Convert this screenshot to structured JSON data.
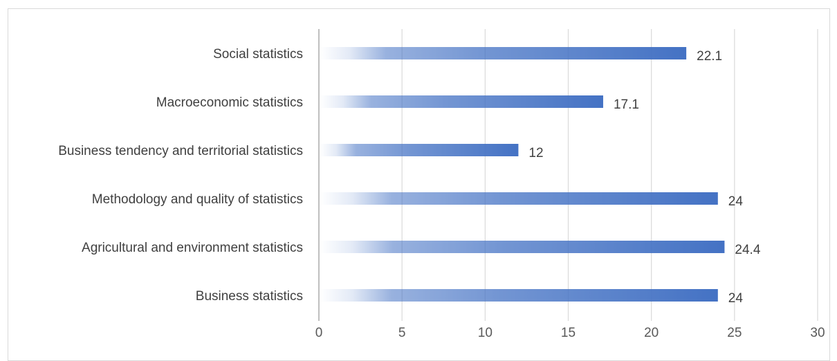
{
  "chart_data": {
    "type": "bar",
    "orientation": "horizontal",
    "categories": [
      "Social statistics",
      "Macroeconomic statistics",
      "Business tendency and territorial statistics",
      "Methodology and quality of statistics",
      "Agricultural and environment statistics",
      "Business statistics"
    ],
    "values": [
      22.1,
      17.1,
      12,
      24,
      24.4,
      24
    ],
    "value_labels": [
      "22.1",
      "17.1",
      "12",
      "24",
      "24.4",
      "24"
    ],
    "xlim": [
      0,
      30
    ],
    "x_ticks": [
      0,
      5,
      10,
      15,
      20,
      25,
      30
    ],
    "x_tick_labels": [
      "0",
      "5",
      "10",
      "15",
      "20",
      "25",
      "30"
    ],
    "grid": "vertical",
    "legend": "none",
    "bar_color": "#4472c4",
    "bar_fill": "gradient"
  }
}
